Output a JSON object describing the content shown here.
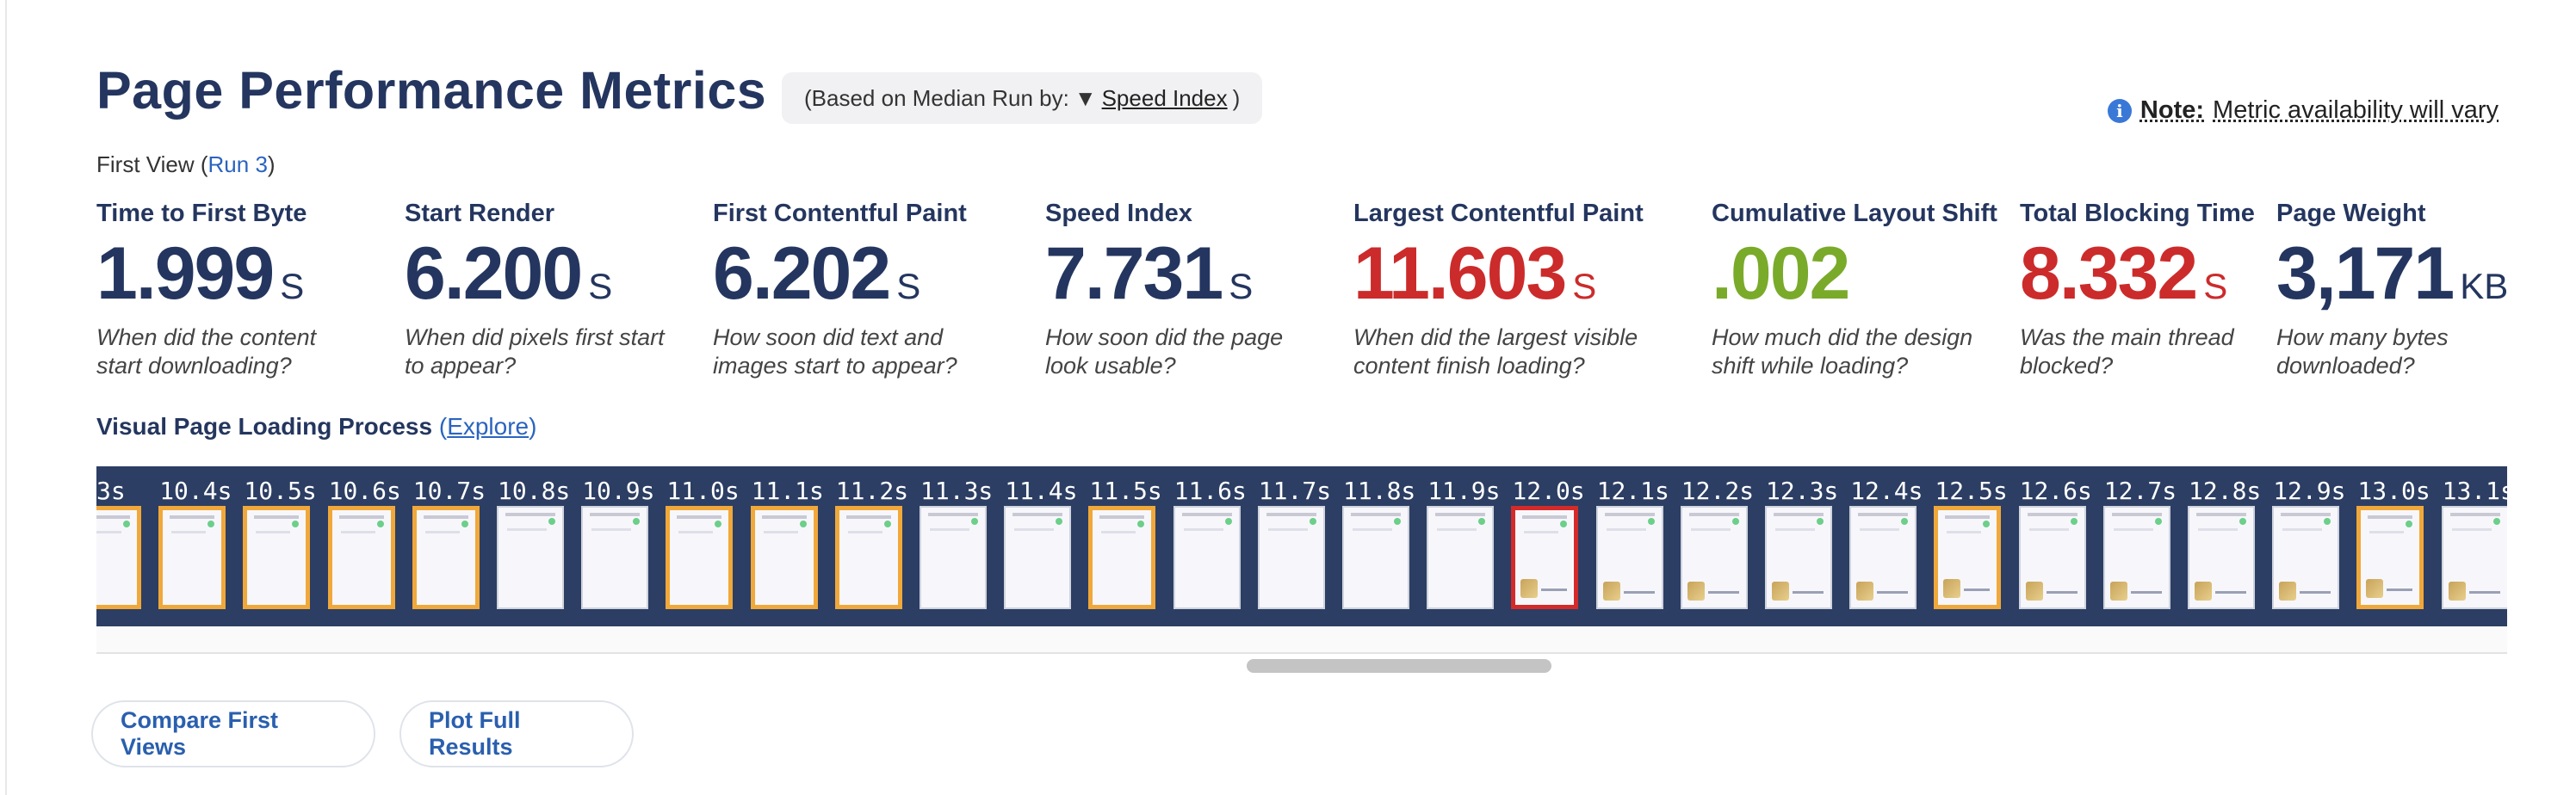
{
  "header": {
    "title": "Page Performance Metrics",
    "median_prefix": "(Based on Median Run by:",
    "median_arrow": "▼",
    "median_metric": "Speed Index",
    "median_suffix": ")",
    "note_label": "Note:",
    "note_text": "Metric availability will vary",
    "first_view_label": "First View (",
    "first_view_link": "Run 3",
    "first_view_close": ")"
  },
  "metrics": [
    {
      "label": "Time to First Byte",
      "value": "1.999",
      "unit": "S",
      "desc1": "When did the content",
      "desc2": "start downloading?",
      "color": "#24365f"
    },
    {
      "label": "Start Render",
      "value": "6.200",
      "unit": "S",
      "desc1": "When did pixels first start",
      "desc2": "to appear?",
      "color": "#24365f"
    },
    {
      "label": "First Contentful Paint",
      "value": "6.202",
      "unit": "S",
      "desc1": "How soon did text and",
      "desc2": "images start to appear?",
      "color": "#24365f"
    },
    {
      "label": "Speed Index",
      "value": "7.731",
      "unit": "S",
      "desc1": "How soon did the page",
      "desc2": "look usable?",
      "color": "#24365f"
    },
    {
      "label": "Largest Contentful Paint",
      "value": "11.603",
      "unit": "S",
      "desc1": "When did the largest visible",
      "desc2": "content finish loading?",
      "color": "#cc2b2b"
    },
    {
      "label": "Cumulative Layout Shift",
      "value": ".002",
      "unit": "",
      "desc1": "How much did the design",
      "desc2": "shift while loading?",
      "color": "#7aaa2a"
    },
    {
      "label": "Total Blocking Time",
      "value": "8.332",
      "unit": "S",
      "desc1": "Was the main thread",
      "desc2": "blocked?",
      "color": "#cc2b2b"
    },
    {
      "label": "Page Weight",
      "value": "3,171",
      "unit": "KB",
      "desc1": "How many bytes",
      "desc2": "downloaded?",
      "color": "#24365f"
    }
  ],
  "visual": {
    "heading": "Visual Page Loading Process",
    "explore_open": "(",
    "explore_link": "Explore",
    "explore_close": ")",
    "times": [
      "3s",
      "10.4s",
      "10.5s",
      "10.6s",
      "10.7s",
      "10.8s",
      "10.9s",
      "11.0s",
      "11.1s",
      "11.2s",
      "11.3s",
      "11.4s",
      "11.5s",
      "11.6s",
      "11.7s",
      "11.8s",
      "11.9s",
      "12.0s",
      "12.1s",
      "12.2s",
      "12.3s",
      "12.4s",
      "12.5s",
      "12.6s",
      "12.7s",
      "12.8s",
      "12.9s",
      "13.0s",
      "13.1s"
    ],
    "frame_states": [
      "changed",
      "changed",
      "changed",
      "changed",
      "changed",
      "plain",
      "plain",
      "changed",
      "changed",
      "changed",
      "plain",
      "plain",
      "changed",
      "plain",
      "plain",
      "plain",
      "plain",
      "lcp",
      "plain",
      "plain",
      "plain",
      "plain",
      "changed",
      "plain",
      "plain",
      "plain",
      "plain",
      "changed",
      "plain"
    ],
    "frame_has_image": [
      false,
      false,
      false,
      false,
      false,
      false,
      false,
      false,
      false,
      false,
      false,
      false,
      false,
      false,
      false,
      false,
      false,
      true,
      true,
      true,
      true,
      true,
      true,
      true,
      true,
      true,
      true,
      true,
      true
    ]
  },
  "buttons": {
    "compare": "Compare First Views",
    "plot": "Plot Full Results"
  }
}
